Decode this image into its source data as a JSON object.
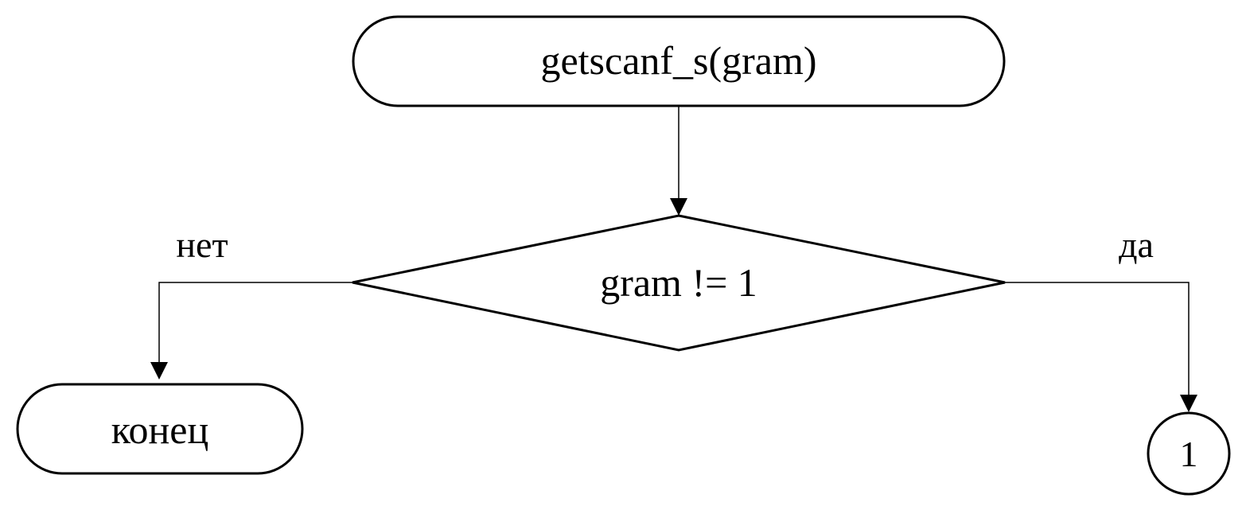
{
  "diagram": {
    "type": "flowchart",
    "nodes": {
      "start": {
        "shape": "terminator",
        "label": "getscanf_s(gram)"
      },
      "decision": {
        "shape": "diamond",
        "label": "gram != 1"
      },
      "end": {
        "shape": "terminator",
        "label": "конец"
      },
      "connector": {
        "shape": "circle",
        "label": "1"
      }
    },
    "edges": [
      {
        "from": "start",
        "to": "decision",
        "label": ""
      },
      {
        "from": "decision",
        "to": "end",
        "label": "нет"
      },
      {
        "from": "decision",
        "to": "connector",
        "label": "да"
      }
    ],
    "branch_labels": {
      "no": "нет",
      "yes": "да"
    }
  }
}
